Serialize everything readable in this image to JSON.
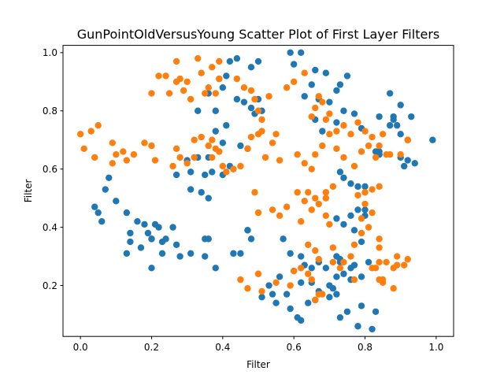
{
  "chart_data": {
    "type": "scatter",
    "title": "GunPointOldVersusYoung Scatter Plot of First Layer Filters",
    "xlabel": "Filter",
    "ylabel": "Filter",
    "xlim": [
      -0.049,
      1.049
    ],
    "ylim": [
      0.025,
      1.025
    ],
    "xticks": [
      "0.0",
      "0.2",
      "0.4",
      "0.6",
      "0.8",
      "1.0"
    ],
    "yticks": [
      "0.2",
      "0.4",
      "0.6",
      "0.8",
      "1.0"
    ],
    "grid": false,
    "legend": "none",
    "series": [
      {
        "color": "#1f77b4",
        "x": [
          0.59,
          0.62,
          0.42,
          0.44,
          0.48,
          0.5,
          0.6,
          0.66,
          0.69,
          0.73,
          0.75,
          0.65,
          0.72,
          0.63,
          0.67,
          0.7,
          0.66,
          0.68,
          0.72,
          0.74,
          0.77,
          0.79,
          0.73,
          0.74,
          0.76,
          0.78,
          0.8,
          0.72,
          0.76,
          0.8,
          0.83,
          0.84,
          0.87,
          0.88,
          0.89,
          0.9,
          0.92,
          0.94,
          0.99,
          0.84,
          0.87,
          0.9,
          0.91,
          0.93,
          0.88,
          0.9,
          0.92,
          0.46,
          0.48,
          0.5,
          0.44,
          0.49,
          0.51,
          0.4,
          0.36,
          0.38,
          0.33,
          0.35,
          0.37,
          0.33,
          0.36,
          0.3,
          0.31,
          0.4,
          0.42,
          0.43,
          0.45,
          0.47,
          0.38,
          0.4,
          0.41,
          0.41,
          0.39,
          0.34,
          0.31,
          0.27,
          0.27,
          0.24,
          0.35,
          0.36,
          0.22,
          0.18,
          0.13,
          0.16,
          0.2,
          0.21,
          0.19,
          0.17,
          0.1,
          0.06,
          0.05,
          0.04,
          0.07,
          0.08,
          0.14,
          0.13,
          0.14,
          0.2,
          0.23,
          0.2,
          0.23,
          0.26,
          0.28,
          0.31,
          0.35,
          0.36,
          0.38,
          0.43,
          0.47,
          0.54,
          0.58,
          0.59,
          0.61,
          0.62,
          0.64,
          0.66,
          0.7,
          0.73,
          0.75,
          0.78,
          0.82,
          0.79,
          0.83,
          0.72,
          0.74,
          0.76,
          0.79,
          0.81,
          0.67,
          0.62,
          0.59,
          0.57,
          0.56,
          0.63,
          0.65,
          0.67,
          0.7,
          0.72,
          0.74,
          0.77,
          0.78,
          0.8,
          0.84,
          0.84,
          0.47,
          0.48,
          0.45,
          0.53,
          0.51,
          0.55,
          0.6,
          0.62,
          0.65,
          0.69,
          0.71,
          0.73,
          0.76,
          0.79,
          0.72,
          0.73,
          0.77
        ],
        "y": [
          1.0,
          1.0,
          0.97,
          0.98,
          0.95,
          0.97,
          0.96,
          0.94,
          0.93,
          0.89,
          0.92,
          0.89,
          0.87,
          0.85,
          0.84,
          0.83,
          0.77,
          0.73,
          0.76,
          0.8,
          0.79,
          0.74,
          0.59,
          0.57,
          0.55,
          0.54,
          0.54,
          0.43,
          0.44,
          0.44,
          0.66,
          0.78,
          0.75,
          0.78,
          0.75,
          0.64,
          0.63,
          0.62,
          0.7,
          0.65,
          0.86,
          0.82,
          0.61,
          0.78,
          0.77,
          0.72,
          0.7,
          0.83,
          0.81,
          0.84,
          0.84,
          0.79,
          0.8,
          0.88,
          0.86,
          0.8,
          0.8,
          0.58,
          0.59,
          0.64,
          0.64,
          0.63,
          0.59,
          0.58,
          0.61,
          0.6,
          0.68,
          0.67,
          0.73,
          0.69,
          0.75,
          0.92,
          0.91,
          0.52,
          0.53,
          0.58,
          0.34,
          0.36,
          0.36,
          0.5,
          0.4,
          0.41,
          0.45,
          0.42,
          0.36,
          0.41,
          0.38,
          0.33,
          0.49,
          0.42,
          0.45,
          0.47,
          0.53,
          0.57,
          0.38,
          0.31,
          0.35,
          0.26,
          0.31,
          0.36,
          0.35,
          0.4,
          0.3,
          0.31,
          0.3,
          0.36,
          0.26,
          0.31,
          0.39,
          0.17,
          0.17,
          0.12,
          0.09,
          0.08,
          0.14,
          0.15,
          0.16,
          0.09,
          0.11,
          0.06,
          0.05,
          0.13,
          0.11,
          0.23,
          0.24,
          0.26,
          0.23,
          0.28,
          0.18,
          0.3,
          0.31,
          0.36,
          0.23,
          0.27,
          0.26,
          0.28,
          0.2,
          0.17,
          0.41,
          0.39,
          0.46,
          0.46,
          0.65,
          0.66,
          0.39,
          0.36,
          0.31,
          0.2,
          0.16,
          0.14,
          0.25,
          0.21,
          0.21,
          0.26,
          0.19,
          0.29,
          0.22,
          0.35,
          0.3,
          0.28,
          0.27
        ]
      },
      {
        "color": "#ff7f0e",
        "x": [
          0.0,
          0.01,
          0.03,
          0.04,
          0.05,
          0.09,
          0.09,
          0.1,
          0.12,
          0.13,
          0.15,
          0.18,
          0.2,
          0.21,
          0.26,
          0.27,
          0.28,
          0.3,
          0.32,
          0.32,
          0.34,
          0.36,
          0.37,
          0.38,
          0.39,
          0.37,
          0.4,
          0.41,
          0.43,
          0.45,
          0.47,
          0.48,
          0.5,
          0.52,
          0.54,
          0.55,
          0.56,
          0.35,
          0.36,
          0.38,
          0.39,
          0.34,
          0.29,
          0.27,
          0.31,
          0.3,
          0.28,
          0.25,
          0.22,
          0.2,
          0.24,
          0.27,
          0.33,
          0.37,
          0.39,
          0.44,
          0.46,
          0.48,
          0.49,
          0.5,
          0.51,
          0.51,
          0.53,
          0.58,
          0.6,
          0.63,
          0.65,
          0.66,
          0.67,
          0.68,
          0.69,
          0.7,
          0.72,
          0.74,
          0.76,
          0.78,
          0.8,
          0.82,
          0.84,
          0.86,
          0.61,
          0.63,
          0.65,
          0.66,
          0.68,
          0.7,
          0.72,
          0.74,
          0.77,
          0.79,
          0.81,
          0.83,
          0.85,
          0.87,
          0.9,
          0.92,
          0.58,
          0.61,
          0.63,
          0.66,
          0.69,
          0.71,
          0.64,
          0.67,
          0.69,
          0.7,
          0.49,
          0.5,
          0.54,
          0.56,
          0.62,
          0.65,
          0.69,
          0.8,
          0.82,
          0.84,
          0.78,
          0.8,
          0.82,
          0.79,
          0.84,
          0.81,
          0.84,
          0.89,
          0.91,
          0.92,
          0.89,
          0.86,
          0.88,
          0.83,
          0.84,
          0.85,
          0.79,
          0.76,
          0.82,
          0.84,
          0.77,
          0.74,
          0.73,
          0.85,
          0.88,
          0.45,
          0.47,
          0.5,
          0.51,
          0.55,
          0.59,
          0.6,
          0.62,
          0.64,
          0.65,
          0.66,
          0.67,
          0.68,
          0.66,
          0.71,
          0.77,
          0.71,
          0.64,
          0.67
        ],
        "y": [
          0.72,
          0.67,
          0.73,
          0.64,
          0.75,
          0.69,
          0.62,
          0.65,
          0.66,
          0.63,
          0.65,
          0.69,
          0.68,
          0.63,
          0.61,
          0.67,
          0.64,
          0.62,
          0.64,
          0.7,
          0.71,
          0.68,
          0.7,
          0.67,
          0.66,
          0.64,
          0.61,
          0.59,
          0.6,
          0.61,
          0.67,
          0.71,
          0.72,
          0.64,
          0.69,
          0.72,
          0.63,
          0.86,
          0.88,
          0.86,
          0.91,
          0.93,
          0.87,
          0.9,
          0.84,
          0.9,
          0.91,
          0.86,
          0.92,
          0.86,
          0.92,
          0.97,
          0.98,
          0.95,
          0.97,
          0.91,
          0.88,
          0.87,
          0.84,
          0.8,
          0.77,
          0.73,
          0.85,
          0.88,
          0.9,
          0.93,
          0.78,
          0.81,
          0.85,
          0.83,
          0.77,
          0.79,
          0.73,
          0.75,
          0.72,
          0.76,
          0.73,
          0.71,
          0.68,
          0.65,
          0.65,
          0.62,
          0.6,
          0.65,
          0.68,
          0.72,
          0.67,
          0.64,
          0.61,
          0.66,
          0.68,
          0.64,
          0.72,
          0.65,
          0.65,
          0.7,
          0.47,
          0.52,
          0.49,
          0.5,
          0.52,
          0.54,
          0.52,
          0.48,
          0.44,
          0.41,
          0.52,
          0.45,
          0.46,
          0.44,
          0.42,
          0.46,
          0.5,
          0.52,
          0.53,
          0.54,
          0.51,
          0.48,
          0.45,
          0.43,
          0.36,
          0.4,
          0.33,
          0.3,
          0.27,
          0.29,
          0.27,
          0.28,
          0.26,
          0.26,
          0.22,
          0.21,
          0.38,
          0.3,
          0.26,
          0.28,
          0.22,
          0.28,
          0.26,
          0.22,
          0.19,
          0.22,
          0.19,
          0.24,
          0.18,
          0.21,
          0.2,
          0.25,
          0.26,
          0.24,
          0.22,
          0.15,
          0.17,
          0.17,
          0.32,
          0.33,
          0.34,
          0.28,
          0.34,
          0.29
        ]
      }
    ]
  }
}
